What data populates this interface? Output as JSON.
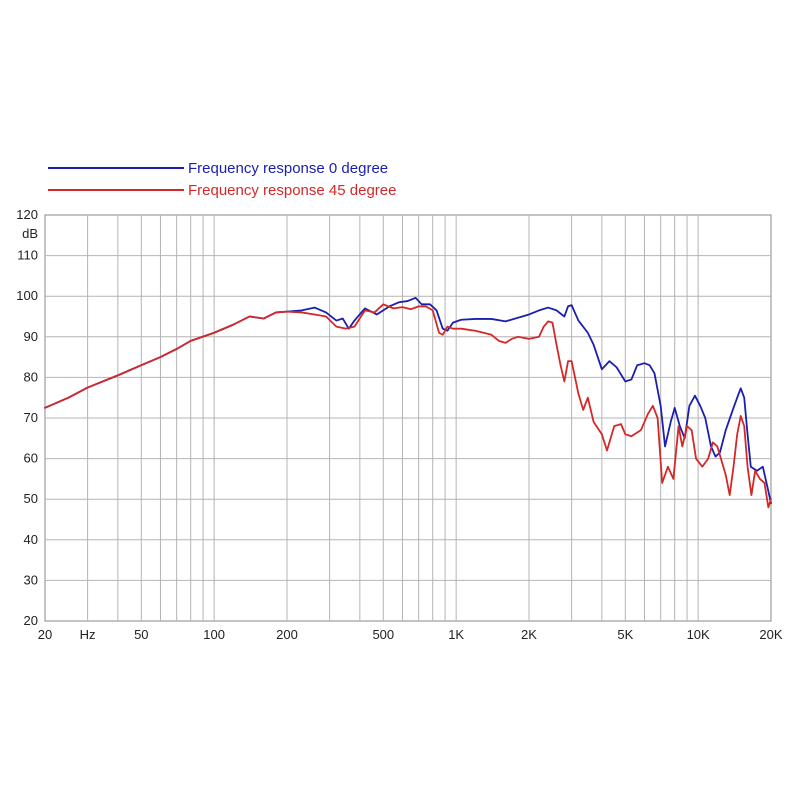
{
  "chart_data": {
    "type": "line",
    "title": "",
    "xlabel": "",
    "ylabel": "dB",
    "x_unit": "Hz",
    "x_scale": "log",
    "xlim": [
      20,
      20000
    ],
    "ylim": [
      20,
      120
    ],
    "grid": true,
    "legend_position": "top-left",
    "y_ticks": [
      {
        "value": 20,
        "label": "20"
      },
      {
        "value": 30,
        "label": "30"
      },
      {
        "value": 40,
        "label": "40"
      },
      {
        "value": 50,
        "label": "50"
      },
      {
        "value": 60,
        "label": "60"
      },
      {
        "value": 70,
        "label": "70"
      },
      {
        "value": 80,
        "label": "80"
      },
      {
        "value": 90,
        "label": "90"
      },
      {
        "value": 100,
        "label": "100"
      },
      {
        "value": 110,
        "label": "110"
      },
      {
        "value": 120,
        "label": "120"
      }
    ],
    "x_ticks": [
      {
        "value": 20,
        "label": "20"
      },
      {
        "value": 30,
        "label": "Hz"
      },
      {
        "value": 50,
        "label": "50"
      },
      {
        "value": 100,
        "label": "100"
      },
      {
        "value": 200,
        "label": "200"
      },
      {
        "value": 500,
        "label": "500"
      },
      {
        "value": 1000,
        "label": "1K"
      },
      {
        "value": 2000,
        "label": "2K"
      },
      {
        "value": 5000,
        "label": "5K"
      },
      {
        "value": 10000,
        "label": "10K"
      },
      {
        "value": 20000,
        "label": "20K"
      }
    ],
    "series": [
      {
        "name": "Frequency response 0 degree",
        "color": "#1a1fb0",
        "points": [
          [
            20,
            72.5
          ],
          [
            25,
            75
          ],
          [
            30,
            77.5
          ],
          [
            40,
            80.5
          ],
          [
            50,
            83
          ],
          [
            60,
            85
          ],
          [
            70,
            87
          ],
          [
            80,
            89
          ],
          [
            100,
            91
          ],
          [
            120,
            93
          ],
          [
            140,
            95
          ],
          [
            160,
            94.5
          ],
          [
            180,
            96
          ],
          [
            200,
            96.2
          ],
          [
            230,
            96.5
          ],
          [
            260,
            97.2
          ],
          [
            290,
            96
          ],
          [
            320,
            94
          ],
          [
            340,
            94.5
          ],
          [
            360,
            92
          ],
          [
            380,
            94
          ],
          [
            420,
            97
          ],
          [
            470,
            95.5
          ],
          [
            530,
            97.5
          ],
          [
            580,
            98.5
          ],
          [
            630,
            98.8
          ],
          [
            680,
            99.6
          ],
          [
            720,
            98
          ],
          [
            780,
            98
          ],
          [
            830,
            96.5
          ],
          [
            880,
            92
          ],
          [
            920,
            91.5
          ],
          [
            970,
            93.5
          ],
          [
            1050,
            94.2
          ],
          [
            1200,
            94.4
          ],
          [
            1400,
            94.4
          ],
          [
            1600,
            93.8
          ],
          [
            1800,
            94.7
          ],
          [
            2000,
            95.5
          ],
          [
            2200,
            96.5
          ],
          [
            2400,
            97.2
          ],
          [
            2600,
            96.5
          ],
          [
            2800,
            95
          ],
          [
            2900,
            97.5
          ],
          [
            3000,
            97.8
          ],
          [
            3200,
            94
          ],
          [
            3500,
            91
          ],
          [
            3700,
            88
          ],
          [
            4000,
            82
          ],
          [
            4300,
            84
          ],
          [
            4600,
            82.5
          ],
          [
            5000,
            79
          ],
          [
            5300,
            79.5
          ],
          [
            5600,
            83
          ],
          [
            6000,
            83.5
          ],
          [
            6300,
            83
          ],
          [
            6600,
            81
          ],
          [
            7000,
            73
          ],
          [
            7300,
            63
          ],
          [
            7700,
            69
          ],
          [
            8000,
            72.5
          ],
          [
            8400,
            68
          ],
          [
            8800,
            65
          ],
          [
            9200,
            73
          ],
          [
            9700,
            75.5
          ],
          [
            10200,
            73
          ],
          [
            10700,
            70
          ],
          [
            11300,
            63
          ],
          [
            11800,
            60.5
          ],
          [
            12300,
            61.5
          ],
          [
            13000,
            67
          ],
          [
            14000,
            72.5
          ],
          [
            14500,
            75
          ],
          [
            15000,
            77.3
          ],
          [
            15500,
            75
          ],
          [
            16000,
            66
          ],
          [
            16500,
            58
          ],
          [
            17500,
            57
          ],
          [
            18500,
            58
          ],
          [
            19500,
            52
          ],
          [
            20000,
            49
          ]
        ]
      },
      {
        "name": "Frequency response 45 degree",
        "color": "#d42828",
        "points": [
          [
            20,
            72.5
          ],
          [
            25,
            75
          ],
          [
            30,
            77.5
          ],
          [
            40,
            80.5
          ],
          [
            50,
            83
          ],
          [
            60,
            85
          ],
          [
            70,
            87
          ],
          [
            80,
            89
          ],
          [
            100,
            91
          ],
          [
            120,
            93
          ],
          [
            140,
            95
          ],
          [
            160,
            94.5
          ],
          [
            180,
            96
          ],
          [
            200,
            96.2
          ],
          [
            230,
            96
          ],
          [
            260,
            95.5
          ],
          [
            290,
            95
          ],
          [
            320,
            92.5
          ],
          [
            350,
            92
          ],
          [
            380,
            92.5
          ],
          [
            420,
            96.5
          ],
          [
            460,
            96
          ],
          [
            500,
            98
          ],
          [
            550,
            97
          ],
          [
            600,
            97.3
          ],
          [
            650,
            96.8
          ],
          [
            700,
            97.5
          ],
          [
            750,
            97.5
          ],
          [
            800,
            96.5
          ],
          [
            850,
            91
          ],
          [
            880,
            90.5
          ],
          [
            920,
            92.5
          ],
          [
            970,
            92
          ],
          [
            1050,
            92
          ],
          [
            1200,
            91.5
          ],
          [
            1400,
            90.5
          ],
          [
            1500,
            89
          ],
          [
            1600,
            88.5
          ],
          [
            1700,
            89.5
          ],
          [
            1800,
            90
          ],
          [
            2000,
            89.5
          ],
          [
            2200,
            90
          ],
          [
            2300,
            92.5
          ],
          [
            2400,
            93.8
          ],
          [
            2500,
            93.5
          ],
          [
            2600,
            88
          ],
          [
            2700,
            83
          ],
          [
            2800,
            79
          ],
          [
            2900,
            84
          ],
          [
            3000,
            84
          ],
          [
            3200,
            76
          ],
          [
            3350,
            72
          ],
          [
            3500,
            75
          ],
          [
            3700,
            69
          ],
          [
            4000,
            66
          ],
          [
            4200,
            62
          ],
          [
            4500,
            68
          ],
          [
            4800,
            68.5
          ],
          [
            5000,
            66
          ],
          [
            5300,
            65.5
          ],
          [
            5800,
            67
          ],
          [
            6200,
            71
          ],
          [
            6500,
            73
          ],
          [
            6800,
            70
          ],
          [
            7100,
            54
          ],
          [
            7500,
            58
          ],
          [
            7900,
            55
          ],
          [
            8300,
            68
          ],
          [
            8600,
            63
          ],
          [
            9000,
            68
          ],
          [
            9400,
            67
          ],
          [
            9800,
            60
          ],
          [
            10400,
            58
          ],
          [
            11000,
            60
          ],
          [
            11500,
            64
          ],
          [
            12000,
            63
          ],
          [
            13000,
            56
          ],
          [
            13500,
            51
          ],
          [
            14000,
            58
          ],
          [
            14500,
            66
          ],
          [
            15000,
            70.5
          ],
          [
            15500,
            68
          ],
          [
            16000,
            58
          ],
          [
            16600,
            51
          ],
          [
            17200,
            57
          ],
          [
            18000,
            55
          ],
          [
            18800,
            54
          ],
          [
            19500,
            48
          ],
          [
            20000,
            50
          ]
        ]
      }
    ]
  }
}
